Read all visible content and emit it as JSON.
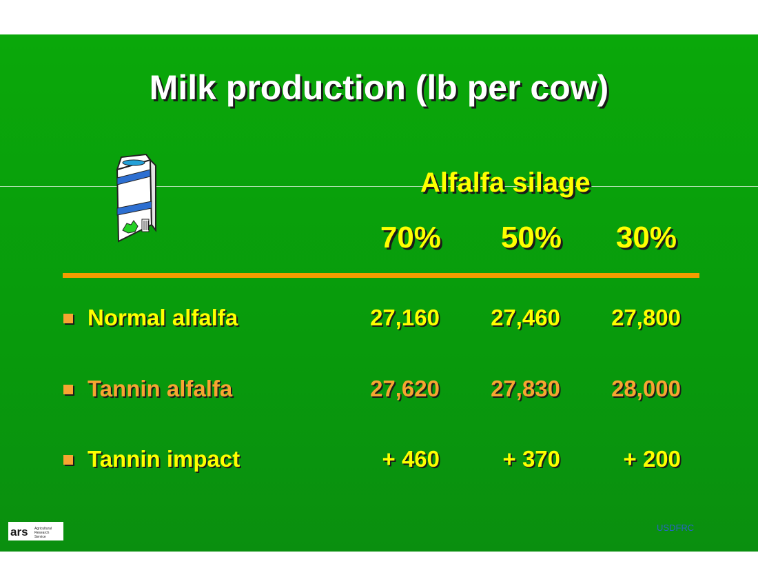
{
  "title": "Milk production (lb per cow)",
  "column_group_label": "Alfalfa silage",
  "columns": [
    "70%",
    "50%",
    "30%"
  ],
  "rows": [
    {
      "label": "Normal alfalfa",
      "values": [
        "27,160",
        "27,460",
        "27,800"
      ]
    },
    {
      "label": "Tannin alfalfa",
      "values": [
        "27,620",
        "27,830",
        "28,000"
      ]
    },
    {
      "label": "Tannin impact",
      "values": [
        "+ 460",
        "+ 370",
        "+ 200"
      ]
    }
  ],
  "footer": {
    "source": "USDFRC",
    "logo_text": "ars",
    "logo_tagline": "Agricultural Research Service"
  },
  "icons": {
    "milk_carton": "milk-carton-icon",
    "bullet": "square-bullet-icon"
  },
  "colors": {
    "background": "#0aa80a",
    "title": "#ffffff",
    "heading": "#ffff00",
    "accent": "#f7a531",
    "divider": "#f39c00"
  }
}
